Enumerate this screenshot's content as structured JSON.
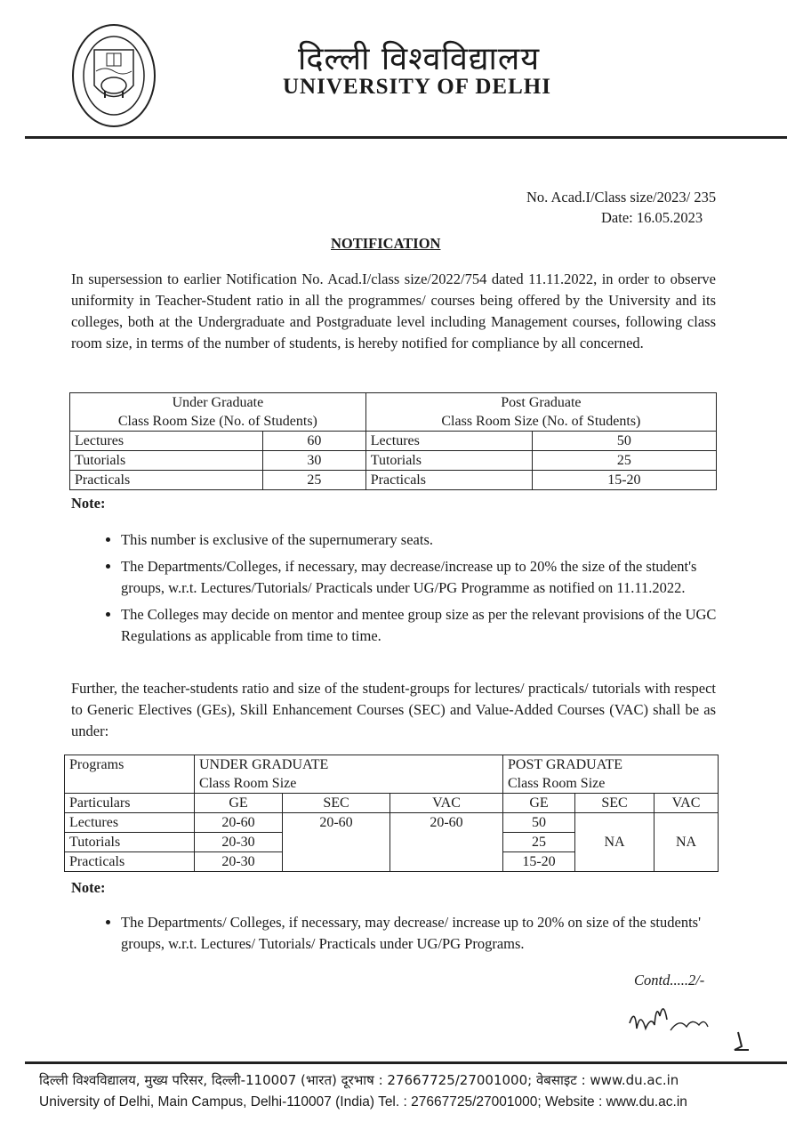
{
  "header": {
    "hindi_title": "दिल्ली विश्वविद्यालय",
    "english_title": "UNIVERSITY OF DELHI",
    "logo_text": "दिल्ली विश्वविद्यालय UNIVERSITY OF DELHI निष्ठा धृति: सत्यम्"
  },
  "reference": "No. Acad.I/Class size/2023/ 235",
  "date": "Date: 16.05.2023",
  "heading": "NOTIFICATION",
  "intro": "In supersession to earlier Notification No. Acad.I/class size/2022/754 dated 11.11.2022, in order to observe uniformity in Teacher-Student ratio in all the programmes/ courses being offered by the University and its colleges, both at the Undergraduate and Postgraduate level including Management courses, following class room size, in terms of the number of students, is hereby notified for compliance by all concerned.",
  "table1": {
    "ug_header": [
      "Under Graduate",
      "Class Room Size (No. of Students)"
    ],
    "pg_header": [
      "Post Graduate",
      "Class Room Size (No. of Students)"
    ],
    "rows": [
      {
        "label": "Lectures",
        "ug": "60",
        "pg": "50"
      },
      {
        "label": "Tutorials",
        "ug": "30",
        "pg": "25"
      },
      {
        "label": "Practicals",
        "ug": "25",
        "pg": "15-20"
      }
    ]
  },
  "note1_label": "Note:",
  "notes1": [
    "This number is exclusive of the supernumerary seats.",
    "The Departments/Colleges, if necessary, may decrease/increase up to 20% the size of the student's groups, w.r.t. Lectures/Tutorials/ Practicals under UG/PG Programme as notified on 11.11.2022.",
    "The Colleges may decide on mentor and mentee group size as per the relevant provisions of the UGC Regulations as applicable from time to time."
  ],
  "further": "Further, the teacher-students ratio and size of the student-groups for lectures/ practicals/ tutorials with respect to Generic Electives (GEs), Skill Enhancement Courses (SEC) and Value-Added Courses (VAC) shall be as under:",
  "table2": {
    "programs": "Programs",
    "ug_header": [
      "UNDER GRADUATE",
      "Class Room Size"
    ],
    "pg_header": [
      "POST GRADUATE",
      "Class Room Size"
    ],
    "particulars": "Particulars",
    "cols": [
      "GE",
      "SEC",
      "VAC",
      "GE",
      "SEC",
      "VAC"
    ],
    "rows": [
      {
        "label": "Lectures",
        "ug_ge": "20-60",
        "pg_ge": "50"
      },
      {
        "label": "Tutorials",
        "ug_ge": "20-30",
        "pg_ge": "25"
      },
      {
        "label": "Practicals",
        "ug_ge": "20-30",
        "pg_ge": "15-20"
      }
    ],
    "ug_sec": "20-60",
    "ug_vac": "20-60",
    "pg_sec": "NA",
    "pg_vac": "NA"
  },
  "note2_label": "Note:",
  "notes2": [
    "The Departments/ Colleges, if necessary, may decrease/ increase up to 20% on size of the students' groups, w.r.t. Lectures/ Tutorials/ Practicals under UG/PG Programs."
  ],
  "contd": "Contd.....2/-",
  "signature": "signature 16/5/23",
  "footer": {
    "hindi": "दिल्ली विश्वविद्यालय, मुख्य परिसर, दिल्ली-110007 (भारत) दूरभाष : 27667725/27001000; वेबसाइट : www.du.ac.in",
    "english": "University of Delhi, Main Campus, Delhi-110007 (India) Tel. : 27667725/27001000; Website : www.du.ac.in"
  }
}
